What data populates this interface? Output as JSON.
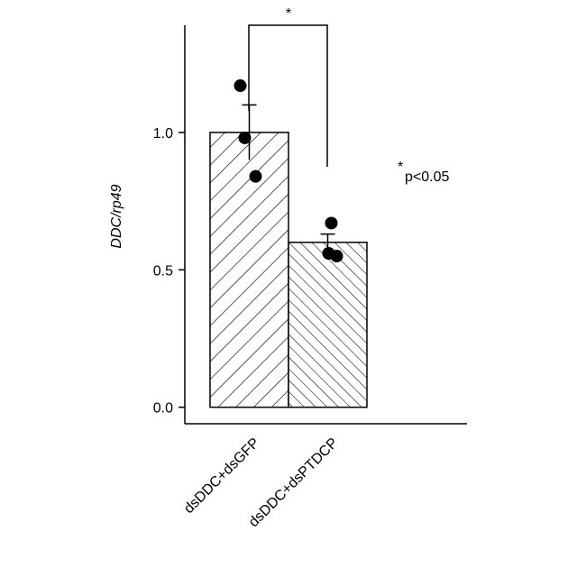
{
  "chart_data": {
    "type": "bar",
    "y_label": "DDC/rp49",
    "categories": [
      "dsDDC+dsGFP",
      "dsDDC+dsPTDCP"
    ],
    "values": [
      1.0,
      0.6
    ],
    "errors": [
      0.1,
      0.03
    ],
    "points": [
      [
        1.17,
        0.98,
        0.84
      ],
      [
        0.67,
        0.56,
        0.55
      ]
    ],
    "hatches": [
      "/",
      "\\"
    ],
    "color": "#000000",
    "ylim": [
      -0.06,
      1.39
    ],
    "yticks": [
      {
        "value": 0,
        "label": "0.0"
      },
      {
        "value": 0.5,
        "label": "0.5"
      },
      {
        "value": 1,
        "label": "1.0"
      }
    ],
    "significance": "*",
    "note_mark": "*",
    "note": "p<0.05"
  }
}
